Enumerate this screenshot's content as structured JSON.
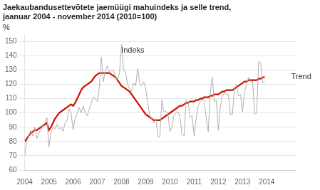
{
  "chart_data": {
    "type": "line",
    "title": "Jaekaubandusettevõtete jaemüügi mahuindeks ja selle trend,\njaanuar 2004 - november 2014 (2010=100)",
    "ylabel": "%",
    "x": [
      2004,
      2004.0833,
      2004.1667,
      2004.25,
      2004.3333,
      2004.4167,
      2004.5,
      2004.5833,
      2004.6667,
      2004.75,
      2004.8333,
      2004.9167,
      2005,
      2005.0833,
      2005.1667,
      2005.25,
      2005.3333,
      2005.4167,
      2005.5,
      2005.5833,
      2005.6667,
      2005.75,
      2005.8333,
      2005.9167,
      2006,
      2006.0833,
      2006.1667,
      2006.25,
      2006.3333,
      2006.4167,
      2006.5,
      2006.5833,
      2006.6667,
      2006.75,
      2006.8333,
      2006.9167,
      2007,
      2007.0833,
      2007.1667,
      2007.25,
      2007.3333,
      2007.4167,
      2007.5,
      2007.5833,
      2007.6667,
      2007.75,
      2007.8333,
      2007.9167,
      2008,
      2008.0833,
      2008.1667,
      2008.25,
      2008.3333,
      2008.4167,
      2008.5,
      2008.5833,
      2008.6667,
      2008.75,
      2008.8333,
      2008.9167,
      2009,
      2009.0833,
      2009.1667,
      2009.25,
      2009.3333,
      2009.4167,
      2009.5,
      2009.5833,
      2009.6667,
      2009.75,
      2009.8333,
      2009.9167,
      2010,
      2010.0833,
      2010.1667,
      2010.25,
      2010.3333,
      2010.4167,
      2010.5,
      2010.5833,
      2010.6667,
      2010.75,
      2010.8333,
      2010.9167,
      2011,
      2011.0833,
      2011.1667,
      2011.25,
      2011.3333,
      2011.4167,
      2011.5,
      2011.5833,
      2011.6667,
      2011.75,
      2011.8333,
      2011.9167,
      2012,
      2012.0833,
      2012.1667,
      2012.25,
      2012.3333,
      2012.4167,
      2012.5,
      2012.5833,
      2012.6667,
      2012.75,
      2012.8333,
      2012.9167,
      2013,
      2013.0833,
      2013.1667,
      2013.25,
      2013.3333,
      2013.4167,
      2013.5,
      2013.5833,
      2013.6667,
      2013.75,
      2013.8333,
      2013.9167
    ],
    "series": [
      {
        "color": "#b0b0b0",
        "values": [
          70,
          80,
          84,
          88,
          84,
          90,
          82,
          86,
          88,
          91,
          93,
          97,
          76,
          87,
          90,
          89,
          92,
          89,
          90,
          87,
          93,
          95,
          103,
          100,
          88,
          96,
          100,
          104,
          100,
          105,
          100,
          98,
          103,
          107,
          111,
          110,
          108,
          118,
          139,
          122,
          130,
          133,
          128,
          130,
          130,
          125,
          123,
          128,
          148,
          130,
          128,
          120,
          117,
          115,
          121,
          119,
          131,
          121,
          119,
          122,
          117,
          107,
          98,
          96,
          93,
          96,
          84,
          83,
          109,
          101,
          101,
          100,
          87,
          90,
          98,
          100,
          101,
          97,
          85,
          84,
          109,
          108,
          97,
          98,
          84,
          96,
          105,
          108,
          109,
          109,
          96,
          87,
          114,
          125,
          108,
          109,
          88,
          104,
          112,
          114,
          113,
          113,
          99,
          99,
          117,
          120,
          112,
          113,
          101,
          115,
          120,
          125,
          122,
          122,
          99,
          100,
          136,
          135,
          121,
          122
        ]
      },
      {
        "color": "#cc1100",
        "values": [
          80,
          82,
          84,
          86,
          87,
          88,
          88,
          89,
          90,
          91,
          92,
          93,
          88,
          90,
          93,
          96,
          98,
          100,
          101,
          102,
          103,
          104,
          105,
          106,
          105,
          107,
          110,
          113,
          116,
          118,
          119,
          120,
          121,
          122,
          124,
          126,
          127,
          128,
          128,
          128,
          128,
          128,
          128,
          127,
          126,
          125,
          123,
          121,
          119,
          118,
          117,
          116,
          115,
          113,
          111,
          109,
          107,
          105,
          103,
          101,
          99,
          98,
          97,
          96,
          95,
          95,
          95,
          95,
          96,
          97,
          98,
          99,
          100,
          101,
          102,
          103,
          104,
          105,
          105,
          106,
          107,
          107,
          108,
          108,
          108,
          109,
          109,
          110,
          110,
          111,
          111,
          111,
          112,
          112,
          113,
          113,
          113,
          114,
          115,
          115,
          116,
          116,
          116,
          116,
          117,
          118,
          119,
          120,
          121,
          122,
          122,
          123,
          123,
          123,
          123,
          123,
          124,
          124,
          125,
          125
        ]
      }
    ],
    "xlim": [
      2004.0,
      2015.2
    ],
    "xticks": [
      2004,
      2005,
      2006,
      2007,
      2008,
      2009,
      2010,
      2011,
      2012,
      2013,
      2014
    ],
    "ylim": [
      60,
      155
    ],
    "yticks": [
      60,
      70,
      80,
      90,
      100,
      110,
      120,
      130,
      140,
      150
    ],
    "grid": true,
    "annotations": [
      {
        "text": "Indeks",
        "x": 2007.9,
        "y": 144
      },
      {
        "text": "Trend",
        "x": 2014.92,
        "y": 125.5
      }
    ]
  }
}
